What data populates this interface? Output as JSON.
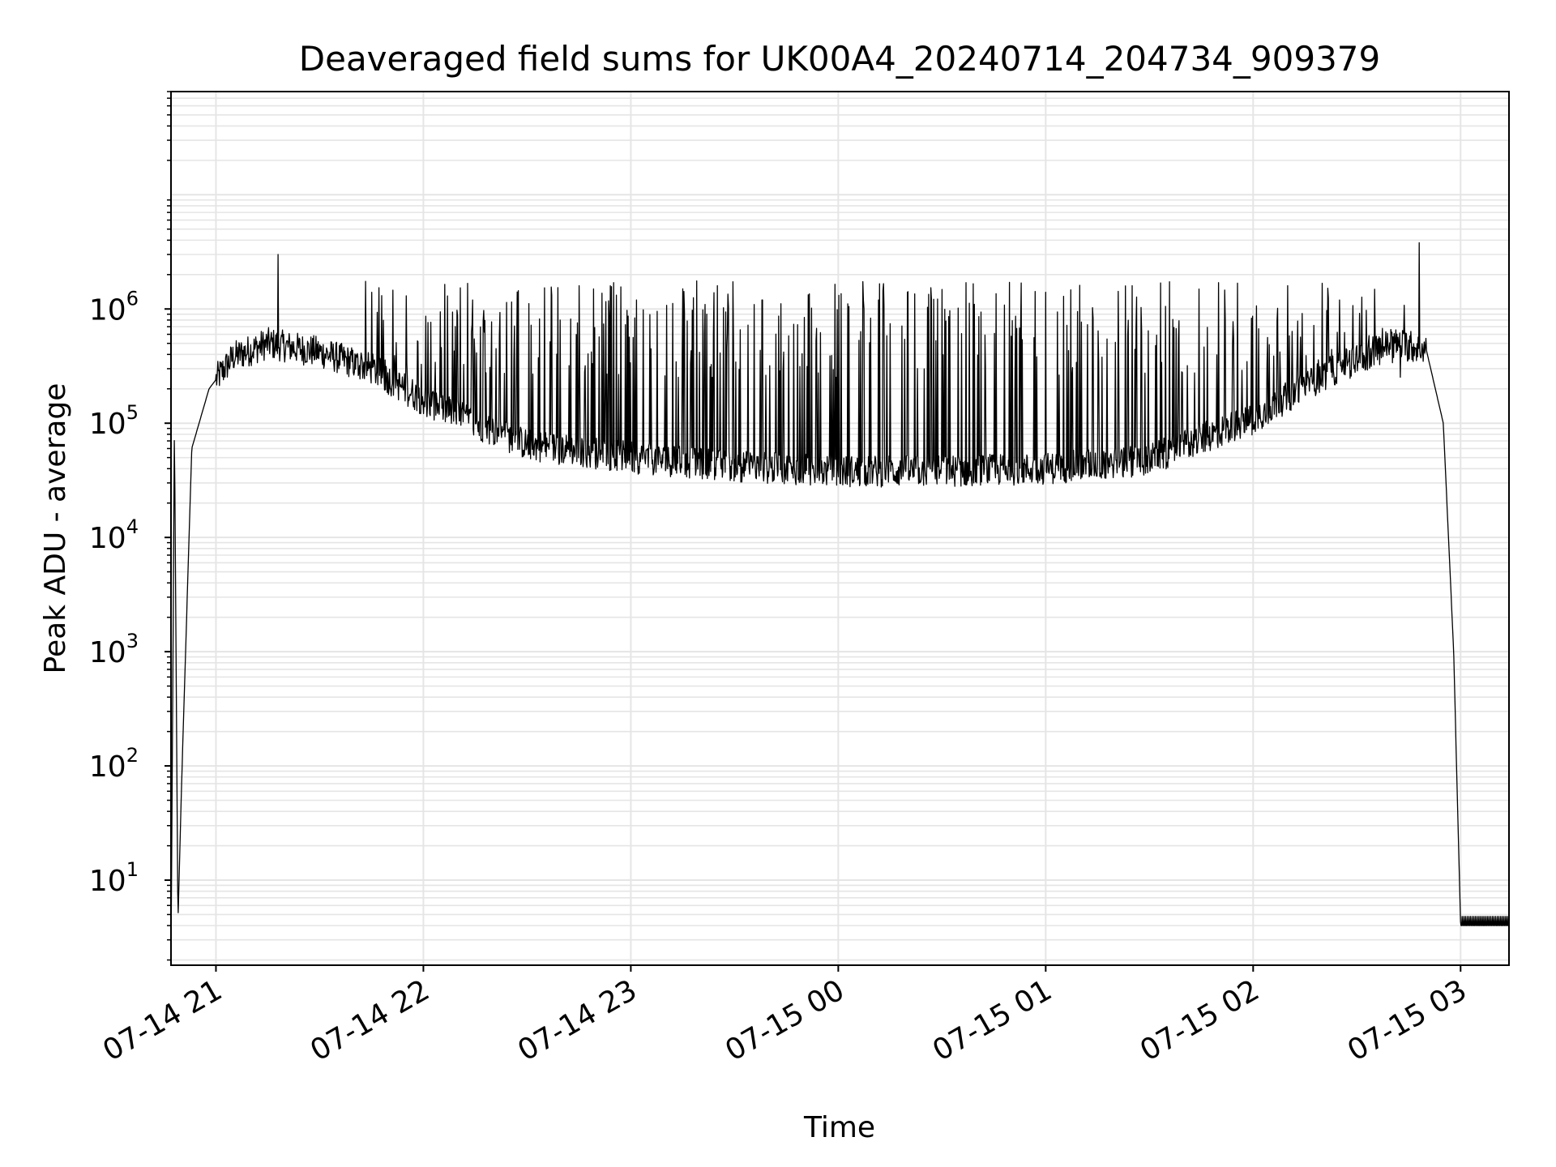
{
  "chart_data": {
    "type": "line",
    "title": "Deaveraged field sums for UK00A4_20240714_204734_909379",
    "xlabel": "Time",
    "ylabel": "Peak ADU - average",
    "yscale": "log",
    "ylim": [
      1.8,
      80000000
    ],
    "xlim": [
      "2024-07-14 20:47",
      "2024-07-15 03:14"
    ],
    "grid": true,
    "line_color": "#000000",
    "grid_color": "#e5e5e5",
    "x_ticks": [
      {
        "t": "2024-07-14 21:00",
        "label": "07-14 21"
      },
      {
        "t": "2024-07-14 22:00",
        "label": "07-14 22"
      },
      {
        "t": "2024-07-14 23:00",
        "label": "07-14 23"
      },
      {
        "t": "2024-07-15 00:00",
        "label": "07-15 00"
      },
      {
        "t": "2024-07-15 01:00",
        "label": "07-15 01"
      },
      {
        "t": "2024-07-15 02:00",
        "label": "07-15 02"
      },
      {
        "t": "2024-07-15 03:00",
        "label": "07-15 03"
      }
    ],
    "y_ticks": [
      {
        "value": 10,
        "base": "10",
        "exp": "1"
      },
      {
        "value": 100,
        "base": "10",
        "exp": "2"
      },
      {
        "value": 1000,
        "base": "10",
        "exp": "3"
      },
      {
        "value": 10000,
        "base": "10",
        "exp": "4"
      },
      {
        "value": 100000,
        "base": "10",
        "exp": "5"
      },
      {
        "value": 1000000,
        "base": "10",
        "exp": "6"
      }
    ],
    "series": [
      {
        "baseline": [
          {
            "t": "2024-07-14 20:47",
            "v": 2
          },
          {
            "t": "2024-07-14 20:48",
            "v": 100000
          },
          {
            "t": "2024-07-14 20:49",
            "v": 4
          },
          {
            "t": "2024-07-14 20:50",
            "v": 60
          },
          {
            "t": "2024-07-14 20:53",
            "v": 60000
          },
          {
            "t": "2024-07-14 20:58",
            "v": 200000
          },
          {
            "t": "2024-07-14 21:05",
            "v": 380000
          },
          {
            "t": "2024-07-14 21:15",
            "v": 500000
          },
          {
            "t": "2024-07-14 21:30",
            "v": 420000
          },
          {
            "t": "2024-07-14 21:45",
            "v": 300000
          },
          {
            "t": "2024-07-14 22:00",
            "v": 160000
          },
          {
            "t": "2024-07-14 22:15",
            "v": 100000
          },
          {
            "t": "2024-07-14 22:30",
            "v": 65000
          },
          {
            "t": "2024-07-14 23:00",
            "v": 50000
          },
          {
            "t": "2024-07-14 23:30",
            "v": 42000
          },
          {
            "t": "2024-07-15 00:00",
            "v": 38000
          },
          {
            "t": "2024-07-15 00:30",
            "v": 38000
          },
          {
            "t": "2024-07-15 01:00",
            "v": 40000
          },
          {
            "t": "2024-07-15 01:30",
            "v": 48000
          },
          {
            "t": "2024-07-15 02:00",
            "v": 110000
          },
          {
            "t": "2024-07-15 02:20",
            "v": 260000
          },
          {
            "t": "2024-07-15 02:40",
            "v": 500000
          },
          {
            "t": "2024-07-15 02:50",
            "v": 450000
          },
          {
            "t": "2024-07-15 02:55",
            "v": 100000
          },
          {
            "t": "2024-07-15 02:58",
            "v": 1000
          },
          {
            "t": "2024-07-15 03:00",
            "v": 4
          },
          {
            "t": "2024-07-15 03:14",
            "v": 4
          }
        ],
        "spikes": [
          {
            "t": "2024-07-14 21:18",
            "v": 3000000
          },
          {
            "t": "2024-07-14 21:45",
            "v": 1400000
          },
          {
            "t": "2024-07-14 22:07",
            "v": 1300000
          },
          {
            "t": "2024-07-14 22:45",
            "v": 1600000
          },
          {
            "t": "2024-07-14 22:55",
            "v": 1700000
          },
          {
            "t": "2024-07-14 23:15",
            "v": 1500000
          },
          {
            "t": "2024-07-14 23:25",
            "v": 1600000
          },
          {
            "t": "2024-07-14 23:38",
            "v": 1200000
          },
          {
            "t": "2024-07-15 00:20",
            "v": 1400000
          },
          {
            "t": "2024-07-15 00:37",
            "v": 1700000
          },
          {
            "t": "2024-07-15 01:00",
            "v": 1400000
          },
          {
            "t": "2024-07-15 01:25",
            "v": 1600000
          },
          {
            "t": "2024-07-15 01:50",
            "v": 1700000
          },
          {
            "t": "2024-07-15 02:10",
            "v": 1600000
          },
          {
            "t": "2024-07-15 02:25",
            "v": 1200000
          },
          {
            "t": "2024-07-15 02:48",
            "v": 3800000
          }
        ]
      }
    ]
  }
}
